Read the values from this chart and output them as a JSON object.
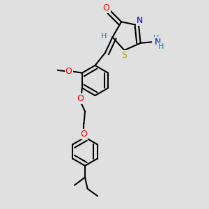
{
  "bg_color": "#e0e0e0",
  "bond_color": "#000000",
  "bond_width": 1.5,
  "atom_colors": {
    "O": "#ff0000",
    "N": "#0000cc",
    "S": "#bbaa00",
    "H": "#008888",
    "C": "#000000"
  }
}
